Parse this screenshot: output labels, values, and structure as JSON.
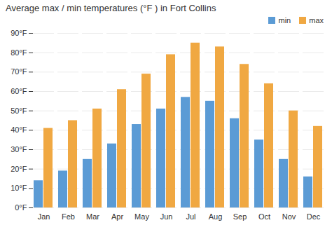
{
  "chart_data": {
    "type": "bar",
    "title": "Average max / min temperatures (°F ) in Fort Collins",
    "categories": [
      "Jan",
      "Feb",
      "Mar",
      "Apr",
      "May",
      "Jun",
      "Jul",
      "Aug",
      "Sep",
      "Oct",
      "Nov",
      "Dec"
    ],
    "series": [
      {
        "name": "min",
        "color": "#5b9bd5",
        "values": [
          14,
          19,
          25,
          33,
          43,
          51,
          57,
          55,
          46,
          35,
          25,
          16
        ]
      },
      {
        "name": "max",
        "color": "#f0a842",
        "values": [
          41,
          45,
          51,
          61,
          69,
          79,
          85,
          83,
          74,
          64,
          50,
          42
        ]
      }
    ],
    "ylim": [
      0,
      90
    ],
    "yticks": [
      {
        "value": 0,
        "label": "0°F"
      },
      {
        "value": 10,
        "label": "10°F"
      },
      {
        "value": 20,
        "label": "20°F"
      },
      {
        "value": 30,
        "label": "30°F"
      },
      {
        "value": 40,
        "label": "40°F"
      },
      {
        "value": 50,
        "label": "50°F"
      },
      {
        "value": 60,
        "label": "60°F"
      },
      {
        "value": 70,
        "label": "70°F"
      },
      {
        "value": 80,
        "label": "80°F"
      },
      {
        "value": 90,
        "label": "90°F"
      }
    ],
    "grid": true,
    "legend": "upper right"
  }
}
